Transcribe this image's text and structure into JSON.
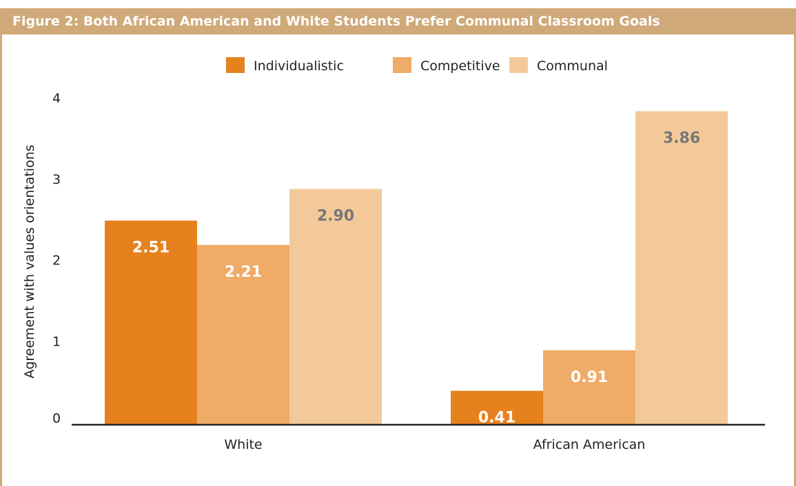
{
  "figure": {
    "title": "Figure 2: Both African American and White Students Prefer Communal Classroom Goals"
  },
  "colors": {
    "header_bg": "#cfa978",
    "frame": "#cfa978",
    "axis_line": "#222222",
    "label_text": "#222222",
    "value_on_dark": "#ffffff",
    "value_on_light": "#777777"
  },
  "chart_data": {
    "type": "bar",
    "title": "",
    "xlabel": "",
    "ylabel": "Agreement with values orientations",
    "ylim": [
      0,
      4
    ],
    "yticks": [
      "0",
      "1",
      "2",
      "3",
      "4"
    ],
    "grid": false,
    "legend_position": "top-center",
    "categories": [
      "White",
      "African American"
    ],
    "series": [
      {
        "name": "Individualistic",
        "color": "#e6821e",
        "values": [
          2.51,
          0.41
        ],
        "labels": [
          "2.51",
          "0.41"
        ],
        "label_color": "#ffffff"
      },
      {
        "name": "Competitive",
        "color": "#efab68",
        "values": [
          2.21,
          0.91
        ],
        "labels": [
          "2.21",
          "0.91"
        ],
        "label_color": "#ffffff"
      },
      {
        "name": "Communal",
        "color": "#f4c99a",
        "values": [
          2.9,
          3.86
        ],
        "labels": [
          "2.90",
          "3.86"
        ],
        "label_color": "#777777"
      }
    ]
  }
}
